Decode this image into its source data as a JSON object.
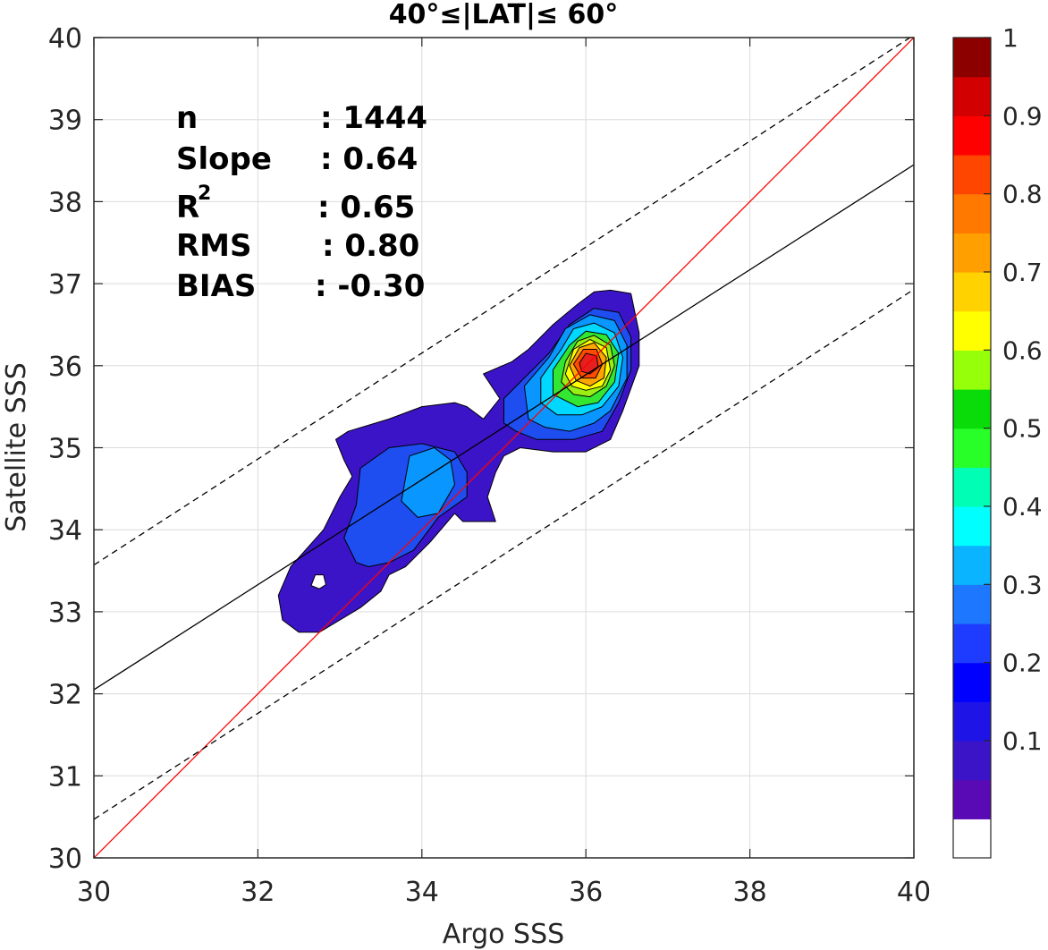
{
  "chart_data": {
    "type": "contour-density-scatter",
    "title": "40°≤|LAT|≤ 60°",
    "xlabel": "Argo SSS",
    "ylabel": "Satellite SSS",
    "xlim": [
      30,
      40
    ],
    "ylim": [
      30,
      40
    ],
    "x_ticks": [
      "30",
      "32",
      "34",
      "36",
      "38",
      "40"
    ],
    "y_ticks": [
      "30",
      "31",
      "32",
      "33",
      "34",
      "35",
      "36",
      "37",
      "38",
      "39",
      "40"
    ],
    "grid": true,
    "stats": {
      "n_label": "n",
      "n_value": ": 1444",
      "slope_label": "Slope",
      "slope_value": ": 0.64",
      "r2_label": "R",
      "r2_sup": "2",
      "r2_value": ": 0.65",
      "rms_label": "RMS",
      "rms_value": ": 0.80",
      "bias_label": "BIAS",
      "bias_value": ": -0.30"
    },
    "lines": [
      {
        "role": "one-to-one",
        "color": "#ff0000",
        "style": "solid",
        "points": [
          [
            30,
            30
          ],
          [
            40,
            40
          ]
        ]
      },
      {
        "role": "regression",
        "color": "#000000",
        "style": "solid",
        "points": [
          [
            30,
            32.05
          ],
          [
            40,
            38.45
          ]
        ]
      },
      {
        "role": "upper-bound",
        "color": "#000000",
        "style": "dashed",
        "points": [
          [
            30,
            33.57
          ],
          [
            40,
            40.03
          ]
        ]
      },
      {
        "role": "lower-bound",
        "color": "#000000",
        "style": "dashed",
        "points": [
          [
            30,
            30.47
          ],
          [
            40,
            36.93
          ]
        ]
      }
    ],
    "density": {
      "peak": [
        36.05,
        36.05
      ],
      "levels": [
        {
          "level": 0.05,
          "color": "#3c14c8",
          "polygon": [
            [
              32.5,
              32.75
            ],
            [
              32.3,
              32.9
            ],
            [
              32.25,
              33.2
            ],
            [
              32.4,
              33.55
            ],
            [
              32.8,
              34.0
            ],
            [
              33.0,
              34.4
            ],
            [
              33.15,
              34.65
            ],
            [
              33.05,
              34.85
            ],
            [
              32.95,
              35.1
            ],
            [
              33.1,
              35.2
            ],
            [
              33.6,
              35.35
            ],
            [
              34.0,
              35.5
            ],
            [
              34.4,
              35.55
            ],
            [
              34.55,
              35.5
            ],
            [
              34.75,
              35.35
            ],
            [
              34.95,
              35.6
            ],
            [
              34.75,
              35.9
            ],
            [
              35.1,
              36.05
            ],
            [
              35.3,
              36.2
            ],
            [
              35.6,
              36.5
            ],
            [
              35.9,
              36.75
            ],
            [
              36.1,
              36.9
            ],
            [
              36.3,
              36.92
            ],
            [
              36.55,
              36.88
            ],
            [
              36.65,
              36.4
            ],
            [
              36.65,
              36.0
            ],
            [
              36.45,
              35.45
            ],
            [
              36.3,
              35.1
            ],
            [
              36.0,
              34.95
            ],
            [
              35.6,
              34.95
            ],
            [
              35.2,
              35.0
            ],
            [
              35.0,
              34.9
            ],
            [
              34.9,
              34.7
            ],
            [
              34.8,
              34.4
            ],
            [
              34.9,
              34.1
            ],
            [
              34.5,
              34.1
            ],
            [
              34.4,
              34.2
            ],
            [
              34.1,
              33.85
            ],
            [
              33.8,
              33.55
            ],
            [
              33.6,
              33.45
            ],
            [
              33.5,
              33.25
            ],
            [
              33.25,
              33.05
            ],
            [
              33.0,
              32.9
            ],
            [
              32.75,
              32.75
            ]
          ]
        },
        {
          "level": 0.15,
          "color": "#1e4ef0",
          "polygon": [
            [
              33.2,
              33.6
            ],
            [
              33.05,
              33.9
            ],
            [
              33.2,
              34.3
            ],
            [
              33.25,
              34.75
            ],
            [
              33.6,
              35.0
            ],
            [
              34.0,
              35.05
            ],
            [
              34.4,
              34.95
            ],
            [
              34.55,
              34.7
            ],
            [
              34.55,
              34.4
            ],
            [
              34.2,
              34.15
            ],
            [
              33.9,
              33.75
            ],
            [
              33.6,
              33.6
            ],
            [
              33.35,
              33.55
            ]
          ]
        },
        {
          "level": 0.15,
          "color": "#1e4ef0",
          "polygon": [
            [
              35.0,
              35.3
            ],
            [
              35.0,
              35.6
            ],
            [
              35.2,
              35.8
            ],
            [
              35.55,
              36.15
            ],
            [
              35.8,
              36.5
            ],
            [
              36.1,
              36.7
            ],
            [
              36.4,
              36.65
            ],
            [
              36.55,
              36.35
            ],
            [
              36.55,
              35.95
            ],
            [
              36.4,
              35.55
            ],
            [
              36.2,
              35.2
            ],
            [
              35.85,
              35.1
            ],
            [
              35.4,
              35.1
            ],
            [
              35.15,
              35.2
            ]
          ]
        },
        {
          "level": 0.25,
          "color": "#0a96ff",
          "polygon": [
            [
              33.75,
              34.35
            ],
            [
              33.85,
              34.9
            ],
            [
              34.15,
              35.0
            ],
            [
              34.35,
              34.85
            ],
            [
              34.4,
              34.55
            ],
            [
              34.2,
              34.2
            ],
            [
              33.95,
              34.15
            ]
          ]
        },
        {
          "level": 0.25,
          "color": "#0a96ff",
          "polygon": [
            [
              35.3,
              35.35
            ],
            [
              35.25,
              35.75
            ],
            [
              35.55,
              36.1
            ],
            [
              35.75,
              36.45
            ],
            [
              36.05,
              36.62
            ],
            [
              36.35,
              36.55
            ],
            [
              36.5,
              36.25
            ],
            [
              36.5,
              35.85
            ],
            [
              36.3,
              35.45
            ],
            [
              36.1,
              35.3
            ],
            [
              35.8,
              35.2
            ],
            [
              35.5,
              35.25
            ]
          ]
        },
        {
          "level": 0.35,
          "color": "#00d8ff",
          "polygon": [
            [
              35.45,
              35.55
            ],
            [
              35.45,
              35.85
            ],
            [
              35.7,
              36.2
            ],
            [
              35.85,
              36.45
            ],
            [
              36.1,
              36.52
            ],
            [
              36.35,
              36.4
            ],
            [
              36.45,
              36.1
            ],
            [
              36.4,
              35.75
            ],
            [
              36.2,
              35.5
            ],
            [
              35.95,
              35.4
            ],
            [
              35.65,
              35.4
            ]
          ]
        },
        {
          "level": 0.45,
          "color": "#32e632",
          "polygon": [
            [
              35.6,
              35.65
            ],
            [
              35.6,
              35.95
            ],
            [
              35.8,
              36.25
            ],
            [
              36.0,
              36.42
            ],
            [
              36.25,
              36.38
            ],
            [
              36.4,
              36.15
            ],
            [
              36.35,
              35.8
            ],
            [
              36.15,
              35.55
            ],
            [
              35.9,
              35.5
            ]
          ]
        },
        {
          "level": 0.55,
          "color": "#9bee14",
          "polygon": [
            [
              35.7,
              35.8
            ],
            [
              35.75,
              36.05
            ],
            [
              35.9,
              36.3
            ],
            [
              36.1,
              36.37
            ],
            [
              36.3,
              36.25
            ],
            [
              36.35,
              36.0
            ],
            [
              36.25,
              35.75
            ],
            [
              36.05,
              35.62
            ],
            [
              35.85,
              35.65
            ]
          ]
        },
        {
          "level": 0.65,
          "color": "#ffff00",
          "polygon": [
            [
              35.75,
              35.9
            ],
            [
              35.85,
              36.2
            ],
            [
              36.05,
              36.32
            ],
            [
              36.25,
              36.22
            ],
            [
              36.3,
              35.95
            ],
            [
              36.2,
              35.75
            ],
            [
              36.0,
              35.7
            ],
            [
              35.83,
              35.75
            ]
          ]
        },
        {
          "level": 0.75,
          "color": "#ffa500",
          "polygon": [
            [
              35.8,
              36.0
            ],
            [
              35.92,
              36.22
            ],
            [
              36.1,
              36.28
            ],
            [
              36.25,
              36.1
            ],
            [
              36.22,
              35.85
            ],
            [
              36.05,
              35.75
            ],
            [
              35.88,
              35.82
            ]
          ]
        },
        {
          "level": 0.85,
          "color": "#ff4a00",
          "polygon": [
            [
              35.85,
              36.02
            ],
            [
              35.97,
              36.2
            ],
            [
              36.13,
              36.2
            ],
            [
              36.2,
              36.02
            ],
            [
              36.12,
              35.85
            ],
            [
              35.95,
              35.85
            ]
          ]
        },
        {
          "level": 0.9,
          "color": "#e61e1e",
          "polygon": [
            [
              35.92,
              36.03
            ],
            [
              36.0,
              36.15
            ],
            [
              36.13,
              36.12
            ],
            [
              36.15,
              35.98
            ],
            [
              36.05,
              35.9
            ],
            [
              35.95,
              35.93
            ]
          ]
        },
        {
          "level": 0.0,
          "color": "#ffffff",
          "polygon": [
            [
              32.65,
              33.32
            ],
            [
              32.7,
              33.45
            ],
            [
              32.8,
              33.45
            ],
            [
              32.83,
              33.33
            ],
            [
              32.75,
              33.28
            ]
          ]
        }
      ]
    },
    "colorbar": {
      "colors": [
        "#ffffff",
        "#5a0ab4",
        "#3c14c8",
        "#1e14e6",
        "#0000ff",
        "#1e3cff",
        "#1e78ff",
        "#0ab4ff",
        "#00ffff",
        "#00ffb4",
        "#28ff28",
        "#0adc0a",
        "#96ff0a",
        "#ffff00",
        "#ffd200",
        "#ffa000",
        "#ff7800",
        "#ff4600",
        "#ff0000",
        "#d20000",
        "#8c0000"
      ],
      "tick_labels": [
        "1",
        "0.9",
        "0.8",
        "0.7",
        "0.6",
        "0.5",
        "0.4",
        "0.3",
        "0.2",
        "0.1"
      ],
      "tick_values": [
        1,
        0.9,
        0.8,
        0.7,
        0.6,
        0.5,
        0.4,
        0.3,
        0.2,
        0.1
      ]
    }
  }
}
